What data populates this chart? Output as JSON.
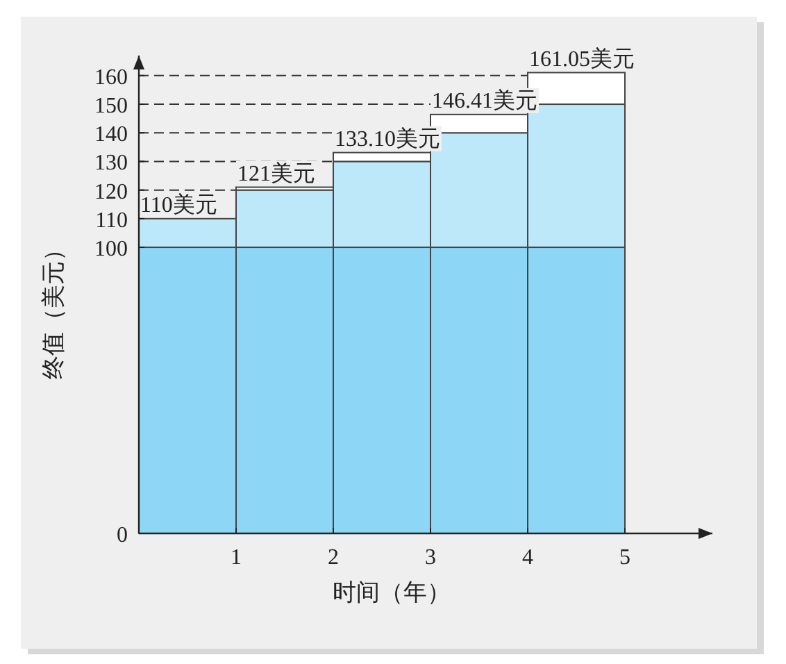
{
  "chart_data": {
    "type": "bar",
    "stacked": true,
    "xlabel": "时间（年）",
    "ylabel": "终值（美元）",
    "x": [
      0.5,
      1.5,
      2.5,
      3.5,
      4.5
    ],
    "xlim": [
      0,
      5.9
    ],
    "xticks": [
      1,
      2,
      3,
      4,
      5
    ],
    "ylim": [
      0,
      167
    ],
    "yticks": [
      0,
      100,
      110,
      120,
      130,
      140,
      150,
      160
    ],
    "series": [
      {
        "color": "#8ed6f5",
        "values": [
          100,
          100,
          100,
          100,
          100
        ]
      },
      {
        "color": "#bde8fa",
        "values": [
          10,
          20,
          30,
          40,
          50
        ]
      },
      {
        "color": "#ffffff",
        "values": [
          0,
          1,
          3.1,
          6.41,
          11.05
        ]
      }
    ],
    "totals": [
      "110美元",
      "121美元",
      "133.10美元",
      "146.41美元",
      "161.05美元"
    ],
    "ref_lines": [
      {
        "axis": "y",
        "value": 120,
        "line_style": "dashed"
      },
      {
        "axis": "y",
        "value": 130,
        "line_style": "dashed"
      },
      {
        "axis": "y",
        "value": 140,
        "line_style": "dashed"
      },
      {
        "axis": "y",
        "value": 150,
        "line_style": "dashed"
      },
      {
        "axis": "y",
        "value": 160,
        "line_style": "dashed"
      }
    ],
    "grid": false
  }
}
